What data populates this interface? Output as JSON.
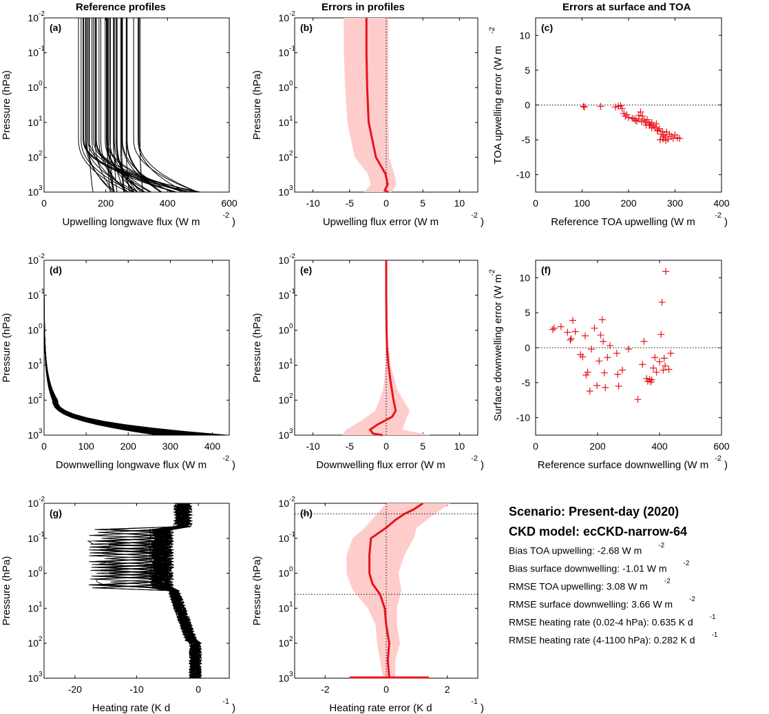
{
  "column_titles": [
    "Reference profiles",
    "Errors in profiles",
    "Errors at surface and TOA"
  ],
  "chart_data": [
    {
      "id": "a",
      "type": "line",
      "panel_label": "(a)",
      "xlabel": "Upwelling longwave flux (W m",
      "xlabel_sup": "-2",
      ")": "",
      "ylabel": "Pressure (hPa)",
      "xlim": [
        0,
        600
      ],
      "ylim": [
        0.01,
        1000
      ],
      "yscale": "log",
      "yreverse": true,
      "xticks": [
        0,
        200,
        400,
        600
      ],
      "yticks": [
        "10^-2",
        "10^-1",
        "10^0",
        "10^1",
        "10^2",
        "10^3"
      ],
      "series_desc": "ensemble of 50 profiles",
      "ensemble": {
        "count": 50,
        "x_at_top_range": [
          110,
          320
        ],
        "x_at_surface_range": [
          140,
          510
        ]
      }
    },
    {
      "id": "b",
      "type": "area",
      "panel_label": "(b)",
      "xlabel": "Upwelling flux error (W m",
      "xlabel_sup": "-2",
      "ylabel": "Pressure (hPa)",
      "xlim": [
        -12.5,
        12.5
      ],
      "ylim": [
        0.01,
        1000
      ],
      "yscale": "log",
      "xticks": [
        -10,
        -5,
        0,
        5,
        10
      ],
      "mean": {
        "p": [
          0.01,
          0.1,
          1,
          10,
          100,
          300,
          600,
          900,
          1000
        ],
        "x": [
          -2.7,
          -2.7,
          -2.6,
          -2.4,
          -1.4,
          -0.1,
          0.2,
          -0.2,
          0.3
        ]
      },
      "spread": {
        "p": [
          0.01,
          0.1,
          1,
          10,
          100,
          300,
          600,
          1000
        ],
        "lo": [
          -5.8,
          -5.8,
          -5.6,
          -5.3,
          -4.3,
          -2.5,
          -2.1,
          -3
        ],
        "hi": [
          0.3,
          0.3,
          0.3,
          0.3,
          0.4,
          1.1,
          1.4,
          0.8
        ]
      }
    },
    {
      "id": "c",
      "type": "scatter",
      "panel_label": "(c)",
      "xlabel": "Reference TOA upwelling (W m",
      "xlabel_sup": "-2",
      "ylabel": "TOA upwelling error (W m",
      "ylabel_sup": "-2",
      "xlim": [
        0,
        400
      ],
      "ylim": [
        -12.5,
        12.5
      ],
      "xticks": [
        0,
        100,
        200,
        300,
        400
      ],
      "yticks": [
        -10,
        -5,
        0,
        5,
        10
      ],
      "points": [
        [
          103,
          -0.2
        ],
        [
          105,
          -0.3
        ],
        [
          140,
          -0.2
        ],
        [
          172,
          -0.3
        ],
        [
          178,
          -0.2
        ],
        [
          183,
          -0.1
        ],
        [
          186,
          -0.5
        ],
        [
          190,
          -1.2
        ],
        [
          193,
          -1.6
        ],
        [
          196,
          -1.4
        ],
        [
          200,
          -1.8
        ],
        [
          212,
          -2.0
        ],
        [
          218,
          -2.3
        ],
        [
          222,
          -2.0
        ],
        [
          226,
          -1.0
        ],
        [
          230,
          -1.6
        ],
        [
          233,
          -2.2
        ],
        [
          236,
          -2.4
        ],
        [
          240,
          -2.1
        ],
        [
          244,
          -2.6
        ],
        [
          247,
          -2.8
        ],
        [
          250,
          -2.5
        ],
        [
          254,
          -3.0
        ],
        [
          257,
          -3.2
        ],
        [
          260,
          -2.7
        ],
        [
          263,
          -3.6
        ],
        [
          266,
          -3.4
        ],
        [
          270,
          -4.2
        ],
        [
          273,
          -3.8
        ],
        [
          276,
          -4.4
        ],
        [
          279,
          -4.6
        ],
        [
          282,
          -3.9
        ],
        [
          285,
          -4.9
        ],
        [
          288,
          -4.2
        ],
        [
          292,
          -4.5
        ],
        [
          296,
          -4.8
        ],
        [
          300,
          -4.3
        ],
        [
          305,
          -4.7
        ],
        [
          310,
          -4.8
        ],
        [
          268,
          -5.0
        ],
        [
          274,
          -4.9
        ],
        [
          280,
          -5.1
        ],
        [
          262,
          -3.7
        ],
        [
          250,
          -3.3
        ],
        [
          238,
          -2.9
        ],
        [
          228,
          -2.4
        ],
        [
          215,
          -2.2
        ],
        [
          208,
          -1.9
        ],
        [
          222,
          -1.5
        ],
        [
          245,
          -2.9
        ]
      ]
    },
    {
      "id": "d",
      "type": "line",
      "panel_label": "(d)",
      "xlabel": "Downwelling longwave flux (W m",
      "xlabel_sup": "-2",
      "ylabel": "Pressure (hPa)",
      "xlim": [
        0,
        440
      ],
      "ylim": [
        0.01,
        1000
      ],
      "yscale": "log",
      "xticks": [
        0,
        100,
        200,
        300,
        400
      ],
      "ensemble": {
        "count": 50,
        "x_at_surface_range": [
          260,
          440
        ]
      }
    },
    {
      "id": "e",
      "type": "area",
      "panel_label": "(e)",
      "xlabel": "Downwelling flux error (W m",
      "xlabel_sup": "-2",
      "ylabel": "Pressure (hPa)",
      "xlim": [
        -12.5,
        12.5
      ],
      "ylim": [
        0.01,
        1000
      ],
      "yscale": "log",
      "xticks": [
        -10,
        -5,
        0,
        5,
        10
      ],
      "mean": {
        "p": [
          0.01,
          0.1,
          1,
          3,
          10,
          30,
          100,
          200,
          300,
          500,
          700,
          900,
          1000
        ],
        "x": [
          0,
          0,
          0.05,
          0.1,
          0.3,
          0.6,
          1.0,
          1.3,
          0.8,
          -1.2,
          -2.2,
          -1.8,
          -0.5
        ]
      },
      "spread": {
        "p": [
          0.01,
          0.1,
          1,
          10,
          50,
          200,
          400,
          700,
          1000
        ],
        "lo": [
          0,
          0,
          0,
          -0.1,
          -0.4,
          -1.5,
          -3.5,
          -5.5,
          -6
        ],
        "hi": [
          0.05,
          0.05,
          0.1,
          0.6,
          1.5,
          3.2,
          2.6,
          2.2,
          6
        ]
      }
    },
    {
      "id": "f",
      "type": "scatter",
      "panel_label": "(f)",
      "xlabel": "Reference surface downwelling (W m",
      "xlabel_sup": "-2",
      "ylabel": "Surface downwelling error (W m",
      "ylabel_sup": "-2",
      "xlim": [
        0,
        600
      ],
      "ylim": [
        -12.5,
        12.5
      ],
      "xticks": [
        0,
        200,
        400,
        600
      ],
      "yticks": [
        -10,
        -5,
        0,
        5,
        10
      ],
      "points": [
        [
          55,
          2.6
        ],
        [
          60,
          2.8
        ],
        [
          82,
          3.0
        ],
        [
          103,
          2.2
        ],
        [
          112,
          1.1
        ],
        [
          115,
          1.3
        ],
        [
          120,
          3.9
        ],
        [
          128,
          2.3
        ],
        [
          145,
          -1.0
        ],
        [
          152,
          -1.3
        ],
        [
          160,
          1.7
        ],
        [
          163,
          -3.9
        ],
        [
          168,
          -3.5
        ],
        [
          175,
          -6.2
        ],
        [
          180,
          -0.2
        ],
        [
          190,
          2.8
        ],
        [
          198,
          -5.4
        ],
        [
          205,
          -1.9
        ],
        [
          210,
          1.8
        ],
        [
          215,
          4.0
        ],
        [
          218,
          0.9
        ],
        [
          222,
          -3.6
        ],
        [
          225,
          -5.7
        ],
        [
          232,
          -1.4
        ],
        [
          240,
          0.3
        ],
        [
          262,
          -0.8
        ],
        [
          265,
          -3.8
        ],
        [
          268,
          -5.5
        ],
        [
          280,
          -3.2
        ],
        [
          300,
          -0.2
        ],
        [
          330,
          -7.4
        ],
        [
          345,
          -2.4
        ],
        [
          358,
          -4.4
        ],
        [
          362,
          -4.8
        ],
        [
          368,
          -4.5
        ],
        [
          375,
          -4.6
        ],
        [
          380,
          -2.9
        ],
        [
          385,
          -1.4
        ],
        [
          390,
          -3.5
        ],
        [
          400,
          -2.0
        ],
        [
          405,
          1.9
        ],
        [
          408,
          6.5
        ],
        [
          412,
          -3.2
        ],
        [
          415,
          -1.5
        ],
        [
          418,
          -2.6
        ],
        [
          420,
          10.9
        ],
        [
          430,
          -3.1
        ],
        [
          436,
          -0.8
        ],
        [
          350,
          0.9
        ],
        [
          372,
          -4.9
        ]
      ]
    },
    {
      "id": "g",
      "type": "line",
      "panel_label": "(g)",
      "xlabel": "Heating rate (K d",
      "xlabel_sup": "-1",
      "ylabel": "Pressure (hPa)",
      "xlim": [
        -25,
        5
      ],
      "ylim": [
        0.01,
        1000
      ],
      "yscale": "log",
      "xticks": [
        -20,
        -10,
        0
      ],
      "ensemble": {
        "count": 50
      }
    },
    {
      "id": "h",
      "type": "area",
      "panel_label": "(h)",
      "xlabel": "Heating rate error (K d",
      "xlabel_sup": "-1",
      "ylabel": "Pressure (hPa)",
      "xlim": [
        -3,
        3
      ],
      "ylim": [
        0.01,
        1000
      ],
      "yscale": "log",
      "xticks": [
        -2,
        0,
        2
      ],
      "hlines": [
        0.02,
        4
      ],
      "mean": {
        "p": [
          0.01,
          0.015,
          0.02,
          0.03,
          0.05,
          0.1,
          0.3,
          1,
          2,
          4,
          10,
          30,
          100,
          300,
          1000
        ],
        "x": [
          1.2,
          0.9,
          0.6,
          0.3,
          0.0,
          -0.5,
          -0.55,
          -0.55,
          -0.45,
          -0.2,
          -0.05,
          0.0,
          0.1,
          0.05,
          0.1
        ]
      },
      "spread": {
        "p": [
          0.01,
          0.02,
          0.05,
          0.1,
          0.3,
          1,
          3,
          10,
          30,
          100,
          300,
          1000
        ],
        "lo": [
          0.0,
          -0.3,
          -0.7,
          -1.1,
          -1.3,
          -1.3,
          -1.1,
          -0.6,
          -0.35,
          -0.3,
          -0.2,
          -0.1
        ],
        "hi": [
          2.1,
          1.6,
          1.0,
          0.9,
          0.6,
          0.4,
          0.5,
          0.35,
          0.35,
          0.45,
          0.3,
          0.3
        ]
      },
      "surface_bar": {
        "p": 1000,
        "lo": -1.2,
        "hi": 1.4
      }
    }
  ],
  "summary": {
    "scenario": "Scenario: Present-day (2020)",
    "ckd_model": "CKD model: ecCKD-narrow-64",
    "lines": [
      {
        "text": "Bias TOA upwelling: -2.68 W m",
        "sup": "-2"
      },
      {
        "text": "Bias surface downwelling: -1.01 W m",
        "sup": "-2"
      },
      {
        "text": "RMSE TOA upwelling: 3.08 W m",
        "sup": "-2"
      },
      {
        "text": "RMSE surface downwelling: 3.66 W m",
        "sup": "-2"
      },
      {
        "text": "RMSE heating rate (0.02-4 hPa):  0.635 K d",
        "sup": "-1"
      },
      {
        "text": "RMSE heating rate (4-1100 hPa):  0.282 K d",
        "sup": "-1"
      }
    ]
  },
  "colors": {
    "error": "#e8121a",
    "spread": "#ffcccc",
    "profiles": "#000000"
  }
}
